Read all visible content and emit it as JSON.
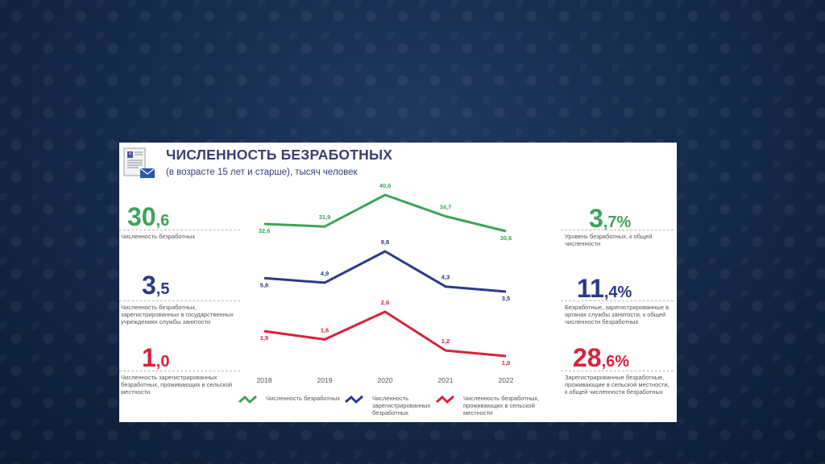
{
  "title": "ЧИСЛЕННОСТЬ БЕЗРАБОТНЫХ",
  "subtitle": "(в возрасте 15 лет и старше), тысяч человек",
  "left_stats": [
    {
      "int": "30",
      "dec": "6",
      "color": "#3fa35b",
      "desc": "Численность безработных"
    },
    {
      "int": "3",
      "dec": "5",
      "color": "#2c3a8a",
      "desc": "Численность безработных, зарегистрированных в государственных учреждениях службы занятости"
    },
    {
      "int": "1",
      "dec": "0",
      "color": "#d8223b",
      "desc": "Численность зарегистрированных безработных, проживающих в сельской местности"
    }
  ],
  "right_stats": [
    {
      "int": "3",
      "dec": "7%",
      "color": "#3fa35b",
      "desc": "Уровень безработных, к общей численности"
    },
    {
      "int": "11",
      "dec": "4%",
      "color": "#2c3a8a",
      "desc": "Безработные, зарегистрированные в органах службы занятости, к общей численности безработных"
    },
    {
      "int": "28",
      "dec": "6%",
      "color": "#d8223b",
      "desc": "Зарегистрированные безработные, проживающие в сельской местности, к общей численности безработных"
    }
  ],
  "legend": [
    {
      "label": "Численность безработных",
      "icon": "green-line-icon"
    },
    {
      "label": "Численность зарегистрированных безработных",
      "icon": "blue-line-icon"
    },
    {
      "label": "Численность безработных, проживающих в сельской местности",
      "icon": "red-line-icon"
    }
  ],
  "chart_data": {
    "type": "line",
    "x": [
      "2018",
      "2019",
      "2020",
      "2021",
      "2022"
    ],
    "series": [
      {
        "name": "Численность безработных",
        "color": "#3fa35b",
        "values": [
          32.6,
          31.9,
          40.6,
          34.7,
          30.6
        ],
        "labels": [
          "32,6",
          "31,9",
          "40,6",
          "34,7",
          "30,6"
        ]
      },
      {
        "name": "Численность зарегистрированных безработных",
        "color": "#2c3a8a",
        "values": [
          5.6,
          4.9,
          9.8,
          4.3,
          3.5
        ],
        "labels": [
          "5,6",
          "4,9",
          "9,8",
          "4,3",
          "3,5"
        ]
      },
      {
        "name": "Численность безработных, проживающих в сельской местности",
        "color": "#d8223b",
        "values": [
          1.9,
          1.6,
          2.6,
          1.2,
          1.0
        ],
        "labels": [
          "1,9",
          "1,6",
          "2,6",
          "1,2",
          "1,0"
        ]
      }
    ]
  }
}
